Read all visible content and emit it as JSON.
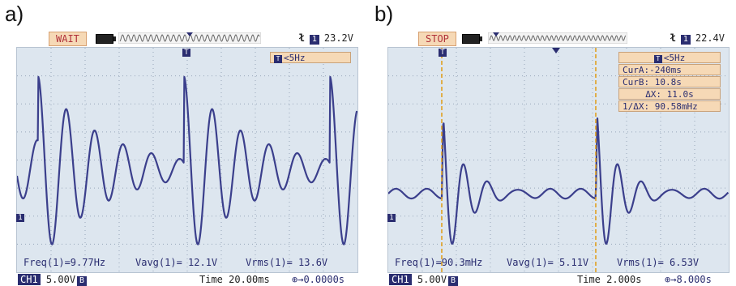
{
  "panel_a": {
    "label": "a)",
    "status": "WAIT",
    "trigger_level": "23.2V",
    "trigger_channel": "1",
    "freq_filter": "<5Hz",
    "measurements": {
      "freq": "Freq(1)=9.77Hz",
      "vavg": "Vavg(1)= 12.1V",
      "vrms": "Vrms(1)= 13.6V"
    },
    "channel": "CH1",
    "volts_div": "5.00V",
    "coupling": "B",
    "timebase": "Time 20.00ms",
    "time_offset": "0.0000s"
  },
  "panel_b": {
    "label": "b)",
    "status": "STOP",
    "trigger_level": "22.4V",
    "trigger_channel": "1",
    "freq_filter": "<5Hz",
    "cursors": {
      "cur_a": "CurA:-240ms",
      "cur_b": "CurB: 10.8s",
      "delta_x": "ΔX: 11.0s",
      "inv_delta_x": "1/ΔX: 90.58mHz"
    },
    "measurements": {
      "freq": "Freq(1)=90.3mHz",
      "vavg": "Vavg(1)= 5.11V",
      "vrms": "Vrms(1)= 6.53V"
    },
    "channel": "CH1",
    "volts_div": "5.00V",
    "coupling": "B",
    "timebase": "Time 2.000s",
    "time_offset": "8.000s"
  },
  "colors": {
    "trace": "#3b3f8c",
    "screen_bg": "#dde6ef",
    "cursor": "#e0a020",
    "badge_bg": "#f6d9b6",
    "badge_text": "#b0303a"
  },
  "icons": {
    "battery": "battery-icon",
    "trigger_edge": "trigger-edge-icon",
    "trigger_marker": "trigger-marker-icon",
    "ground_marker": "channel-ground-marker-icon"
  }
}
